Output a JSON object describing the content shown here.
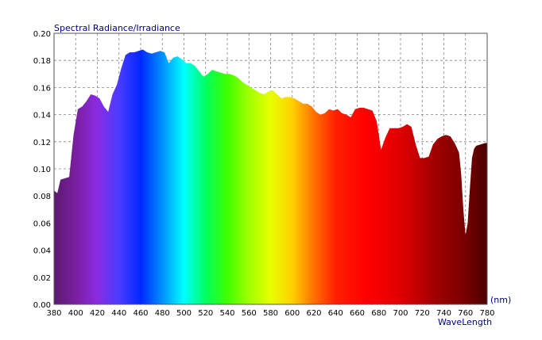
{
  "chart_data": {
    "type": "area",
    "title": "Spectral Radiance/Irradiance",
    "xlabel": "WaveLength",
    "xunit": "(nm)",
    "ylabel": "",
    "xlim": [
      380,
      780
    ],
    "ylim": [
      0,
      0.2
    ],
    "grid": true,
    "x_ticks": [
      "380",
      "400",
      "420",
      "440",
      "460",
      "480",
      "500",
      "520",
      "540",
      "560",
      "580",
      "600",
      "620",
      "640",
      "660",
      "680",
      "700",
      "720",
      "740",
      "760",
      "780"
    ],
    "y_ticks": [
      "0.00",
      "0.02",
      "0.04",
      "0.06",
      "0.08",
      "0.10",
      "0.12",
      "0.14",
      "0.16",
      "0.18",
      "0.20"
    ],
    "x": [
      380,
      383,
      386,
      390,
      394,
      398,
      402,
      406,
      410,
      414,
      418,
      422,
      426,
      430,
      434,
      438,
      442,
      446,
      450,
      454,
      458,
      462,
      466,
      470,
      474,
      478,
      482,
      486,
      490,
      494,
      498,
      502,
      506,
      510,
      514,
      518,
      522,
      526,
      530,
      534,
      538,
      542,
      546,
      550,
      554,
      558,
      562,
      566,
      570,
      574,
      578,
      582,
      586,
      590,
      594,
      598,
      602,
      606,
      610,
      614,
      618,
      622,
      626,
      630,
      634,
      638,
      642,
      646,
      650,
      654,
      658,
      662,
      666,
      670,
      674,
      678,
      682,
      686,
      690,
      694,
      698,
      702,
      706,
      710,
      714,
      718,
      722,
      726,
      730,
      734,
      738,
      742,
      746,
      750,
      754,
      756,
      758,
      760,
      762,
      764,
      766,
      768,
      770,
      774,
      778,
      780
    ],
    "series": [
      {
        "values": [
          0.084,
          0.082,
          0.092,
          0.093,
          0.094,
          0.125,
          0.144,
          0.146,
          0.15,
          0.155,
          0.154,
          0.152,
          0.146,
          0.142,
          0.155,
          0.162,
          0.174,
          0.184,
          0.186,
          0.186,
          0.187,
          0.188,
          0.186,
          0.185,
          0.186,
          0.187,
          0.186,
          0.178,
          0.182,
          0.183,
          0.181,
          0.178,
          0.178,
          0.176,
          0.172,
          0.168,
          0.17,
          0.173,
          0.172,
          0.171,
          0.17,
          0.17,
          0.169,
          0.167,
          0.164,
          0.162,
          0.16,
          0.158,
          0.156,
          0.155,
          0.157,
          0.158,
          0.155,
          0.152,
          0.153,
          0.153,
          0.152,
          0.15,
          0.148,
          0.148,
          0.146,
          0.142,
          0.14,
          0.141,
          0.144,
          0.143,
          0.144,
          0.141,
          0.14,
          0.138,
          0.144,
          0.145,
          0.145,
          0.144,
          0.143,
          0.135,
          0.114,
          0.123,
          0.13,
          0.13,
          0.13,
          0.131,
          0.133,
          0.131,
          0.118,
          0.108,
          0.108,
          0.109,
          0.118,
          0.122,
          0.124,
          0.125,
          0.124,
          0.119,
          0.112,
          0.096,
          0.07,
          0.051,
          0.06,
          0.085,
          0.108,
          0.115,
          0.117,
          0.118,
          0.119,
          0.119
        ]
      }
    ]
  }
}
